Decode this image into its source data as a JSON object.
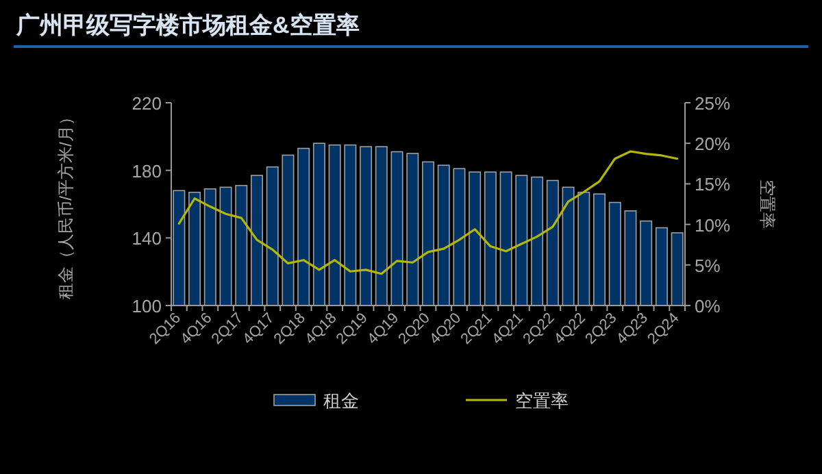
{
  "chart_data": {
    "type": "bar",
    "title": "广州甲级写字楼市场租金&空置率",
    "ylabel": "租金（人民币/平方米/月）",
    "y2label": "空置率",
    "categories": [
      "2Q16",
      null,
      "4Q16",
      null,
      "2Q17",
      null,
      "4Q17",
      null,
      "2Q18",
      null,
      "4Q18",
      null,
      "2Q19",
      null,
      "4Q19",
      null,
      "2Q20",
      null,
      "4Q20",
      null,
      "2Q21",
      null,
      "4Q21",
      null,
      "2Q22",
      null,
      "4Q22",
      null,
      "2Q23",
      null,
      "4Q23",
      null,
      "2Q24"
    ],
    "series": [
      {
        "name": "租金",
        "color": "#003366",
        "values": [
          168,
          167,
          169,
          170,
          171,
          177,
          182,
          189,
          193,
          196,
          195,
          195,
          194,
          194,
          191,
          190,
          185,
          183,
          181,
          179,
          179,
          179,
          177,
          176,
          174,
          170,
          167,
          166,
          161,
          156,
          150,
          146,
          143
        ]
      },
      {
        "name": "空置率",
        "type": "line",
        "axis": "y2",
        "color": "#b5b800",
        "values": [
          10.1,
          13.2,
          12.2,
          11.3,
          10.8,
          8.1,
          6.9,
          5.2,
          5.6,
          4.4,
          5.6,
          4.2,
          4.4,
          3.9,
          5.5,
          5.3,
          6.6,
          7.0,
          8.1,
          9.4,
          7.3,
          6.7,
          7.6,
          8.5,
          9.7,
          12.8,
          14.0,
          15.3,
          18.1,
          19.0,
          18.7,
          18.5,
          18.1
        ]
      }
    ],
    "ylim": [
      100,
      220
    ],
    "yticks": [
      100,
      140,
      180,
      220
    ],
    "y2lim": [
      0,
      25
    ],
    "y2ticks": [
      {
        "value": 0,
        "label": "0%"
      },
      {
        "value": 5,
        "label": "5%"
      },
      {
        "value": 10,
        "label": "10%"
      },
      {
        "value": 15,
        "label": "15%"
      },
      {
        "value": 20,
        "label": "20%"
      },
      {
        "value": 25,
        "label": "25%"
      }
    ],
    "grid": false,
    "legend": "bottom"
  }
}
